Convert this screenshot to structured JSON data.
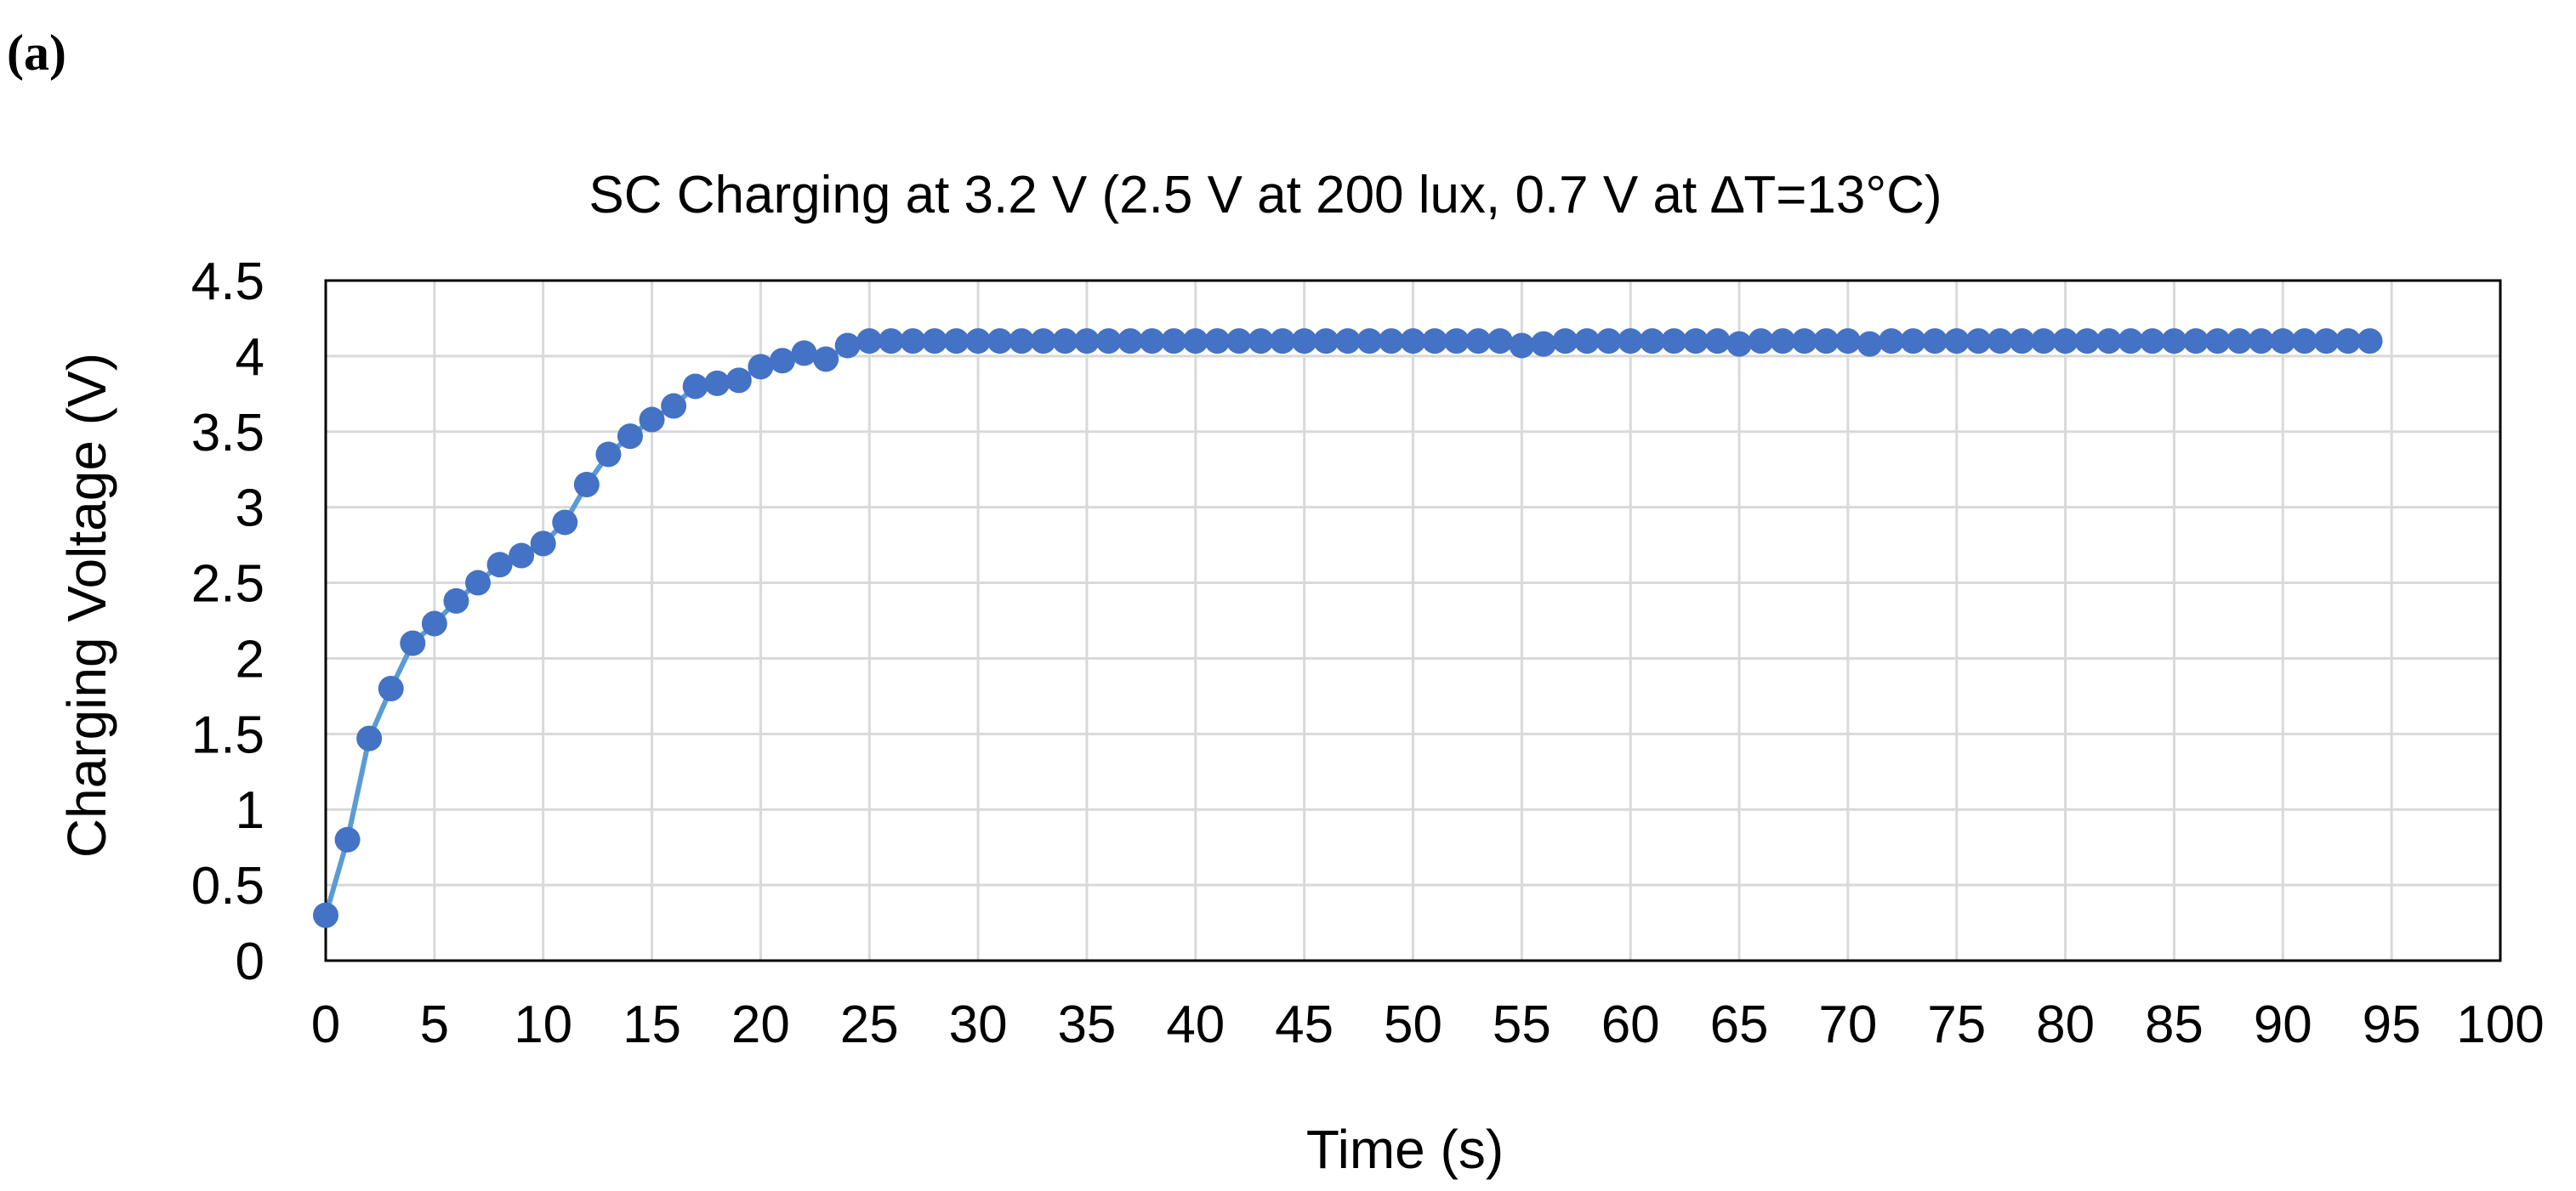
{
  "panel_label": "(a)",
  "chart_data": {
    "type": "line",
    "title": "SC Charging at 3.2 V (2.5 V at 200 lux, 0.7 V at ∆T=13°C)",
    "xlabel": "Time (s)",
    "ylabel": "Charging Voltage (V)",
    "xlim": [
      0,
      100
    ],
    "ylim": [
      0,
      4.5
    ],
    "xticks": [
      0,
      5,
      10,
      15,
      20,
      25,
      30,
      35,
      40,
      45,
      50,
      55,
      60,
      65,
      70,
      75,
      80,
      85,
      90,
      95,
      100
    ],
    "yticks": [
      0,
      0.5,
      1,
      1.5,
      2,
      2.5,
      3,
      3.5,
      4,
      4.5
    ],
    "grid": true,
    "legend": "none",
    "series": [
      {
        "color": "#4472c4",
        "line_color": "#5b9bd5",
        "marker": "circle",
        "x": [
          0,
          1,
          2,
          3,
          4,
          5,
          6,
          7,
          8,
          9,
          10,
          11,
          12,
          13,
          14,
          15,
          16,
          17,
          18,
          19,
          20,
          21,
          22,
          23,
          24,
          25,
          26,
          27,
          28,
          29,
          30,
          31,
          32,
          33,
          34,
          35,
          36,
          37,
          38,
          39,
          40,
          41,
          42,
          43,
          44,
          45,
          46,
          47,
          48,
          49,
          50,
          51,
          52,
          53,
          54,
          55,
          56,
          57,
          58,
          59,
          60,
          61,
          62,
          63,
          64,
          65,
          66,
          67,
          68,
          69,
          70,
          71,
          72,
          73,
          74,
          75,
          76,
          77,
          78,
          79,
          80,
          81,
          82,
          83,
          84,
          85,
          86,
          87,
          88,
          89,
          90,
          91,
          92,
          93,
          94
        ],
        "y": [
          0.3,
          0.8,
          1.47,
          1.8,
          2.1,
          2.23,
          2.38,
          2.5,
          2.62,
          2.68,
          2.76,
          2.9,
          3.15,
          3.35,
          3.47,
          3.58,
          3.67,
          3.8,
          3.82,
          3.84,
          3.93,
          3.97,
          4.02,
          3.98,
          4.07,
          4.1,
          4.1,
          4.1,
          4.1,
          4.1,
          4.1,
          4.1,
          4.1,
          4.1,
          4.1,
          4.1,
          4.1,
          4.1,
          4.1,
          4.1,
          4.1,
          4.1,
          4.1,
          4.1,
          4.1,
          4.1,
          4.1,
          4.1,
          4.1,
          4.1,
          4.1,
          4.1,
          4.1,
          4.1,
          4.1,
          4.07,
          4.08,
          4.1,
          4.1,
          4.1,
          4.1,
          4.1,
          4.1,
          4.1,
          4.1,
          4.08,
          4.1,
          4.1,
          4.1,
          4.1,
          4.1,
          4.08,
          4.1,
          4.1,
          4.1,
          4.1,
          4.1,
          4.1,
          4.1,
          4.1,
          4.1,
          4.1,
          4.1,
          4.1,
          4.1,
          4.1,
          4.1,
          4.1,
          4.1,
          4.1,
          4.1,
          4.1,
          4.1,
          4.1,
          4.1
        ]
      }
    ]
  }
}
